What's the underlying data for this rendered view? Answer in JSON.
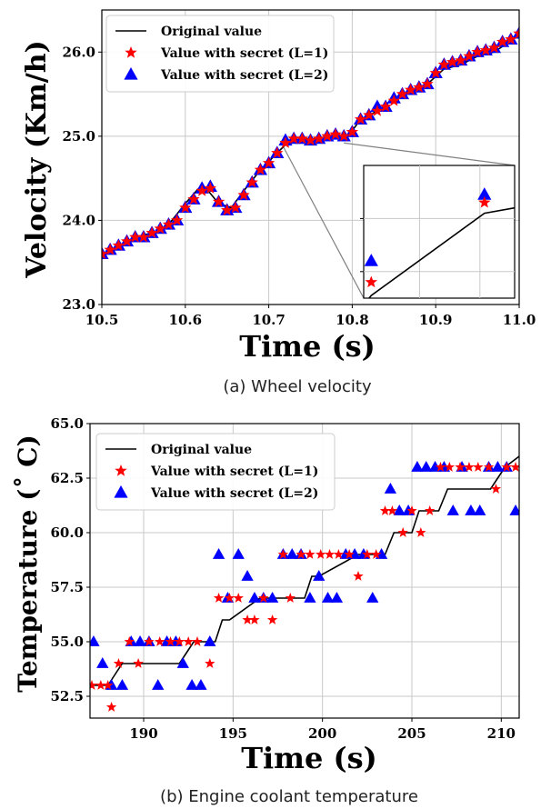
{
  "chart_data": [
    {
      "type": "line",
      "caption": "(a) Wheel velocity",
      "xlabel": "Time (s)",
      "ylabel": "Velocity (Km/h)",
      "xlim": [
        10.5,
        11.0
      ],
      "ylim": [
        23.0,
        26.5
      ],
      "xticks": [
        "10.5",
        "10.6",
        "10.7",
        "10.8",
        "10.9",
        "11.0"
      ],
      "yticks": [
        "23.0",
        "24.0",
        "25.0",
        "26.0"
      ],
      "grid": true,
      "legend_position": "top-left",
      "colors": {
        "original": "#000000",
        "l1": "#ff0000",
        "l2": "#0000ff"
      },
      "series": [
        {
          "name": "Original value",
          "marker": "line",
          "x": [
            10.5,
            10.52,
            10.54,
            10.56,
            10.58,
            10.6,
            10.615,
            10.625,
            10.64,
            10.655,
            10.67,
            10.69,
            10.705,
            10.72,
            10.74,
            10.76,
            10.78,
            10.795,
            10.81,
            10.83,
            10.85,
            10.87,
            10.89,
            10.91,
            10.93,
            10.95,
            10.97,
            10.985,
            11.0
          ],
          "y": [
            23.6,
            23.7,
            23.8,
            23.85,
            23.95,
            24.2,
            24.37,
            24.38,
            24.2,
            24.15,
            24.35,
            24.6,
            24.75,
            24.9,
            24.97,
            24.97,
            25.0,
            25.0,
            25.2,
            25.3,
            25.45,
            25.55,
            25.62,
            25.8,
            25.85,
            25.95,
            26.0,
            26.1,
            26.2
          ]
        },
        {
          "name": "Value with secret (L=1)",
          "marker": "star",
          "x": [
            10.5,
            10.51,
            10.52,
            10.53,
            10.54,
            10.55,
            10.56,
            10.57,
            10.58,
            10.59,
            10.6,
            10.61,
            10.62,
            10.63,
            10.64,
            10.65,
            10.66,
            10.67,
            10.68,
            10.69,
            10.7,
            10.71,
            10.72,
            10.73,
            10.74,
            10.75,
            10.76,
            10.77,
            10.78,
            10.79,
            10.8,
            10.81,
            10.82,
            10.83,
            10.84,
            10.85,
            10.86,
            10.87,
            10.88,
            10.89,
            10.9,
            10.91,
            10.92,
            10.93,
            10.94,
            10.95,
            10.96,
            10.97,
            10.98,
            10.99,
            11.0
          ],
          "y": [
            23.6,
            23.65,
            23.7,
            23.75,
            23.8,
            23.8,
            23.85,
            23.9,
            23.95,
            24.0,
            24.15,
            24.25,
            24.35,
            24.38,
            24.22,
            24.12,
            24.15,
            24.3,
            24.45,
            24.6,
            24.68,
            24.8,
            24.92,
            24.97,
            24.97,
            24.95,
            24.97,
            25.0,
            25.02,
            25.0,
            25.05,
            25.2,
            25.25,
            25.3,
            25.35,
            25.42,
            25.5,
            25.55,
            25.58,
            25.62,
            25.75,
            25.85,
            25.88,
            25.9,
            25.95,
            26.0,
            26.02,
            26.05,
            26.12,
            26.15,
            26.22
          ]
        },
        {
          "name": "Value with secret (L=2)",
          "marker": "triangle",
          "x": [
            10.5,
            10.51,
            10.52,
            10.53,
            10.54,
            10.55,
            10.56,
            10.57,
            10.58,
            10.59,
            10.6,
            10.61,
            10.62,
            10.63,
            10.64,
            10.65,
            10.66,
            10.67,
            10.68,
            10.69,
            10.7,
            10.71,
            10.72,
            10.73,
            10.74,
            10.75,
            10.76,
            10.77,
            10.78,
            10.79,
            10.8,
            10.81,
            10.82,
            10.83,
            10.84,
            10.85,
            10.86,
            10.87,
            10.88,
            10.89,
            10.9,
            10.91,
            10.92,
            10.93,
            10.94,
            10.95,
            10.96,
            10.97,
            10.98,
            10.99,
            11.0
          ],
          "y": [
            23.6,
            23.65,
            23.7,
            23.75,
            23.8,
            23.8,
            23.85,
            23.9,
            23.95,
            24.0,
            24.15,
            24.25,
            24.38,
            24.4,
            24.22,
            24.12,
            24.15,
            24.3,
            24.45,
            24.6,
            24.68,
            24.8,
            24.95,
            24.97,
            24.97,
            24.95,
            24.97,
            25.0,
            25.02,
            25.0,
            25.05,
            25.2,
            25.25,
            25.35,
            25.35,
            25.45,
            25.5,
            25.55,
            25.58,
            25.62,
            25.75,
            25.85,
            25.88,
            25.9,
            25.95,
            26.0,
            26.02,
            26.05,
            26.12,
            26.15,
            26.22
          ]
        }
      ],
      "inset": {
        "xlim": [
          0,
          1
        ],
        "ylim": [
          0,
          1
        ],
        "original": {
          "x": [
            0,
            0.05,
            0.8,
            1.0
          ],
          "y": [
            -0.05,
            0.02,
            0.64,
            0.68
          ]
        },
        "l1": {
          "x": [
            0.05,
            0.8
          ],
          "y": [
            0.12,
            0.72
          ]
        },
        "l2": {
          "x": [
            0.05,
            0.8
          ],
          "y": [
            0.28,
            0.78
          ]
        }
      }
    },
    {
      "type": "line",
      "caption": "(b) Engine coolant temperature",
      "xlabel": "Time (s)",
      "ylabel": "Temperature ($^\\circ$C)",
      "ylabel_display": "Temperature (˚ C)",
      "xlim": [
        187,
        211
      ],
      "ylim": [
        51.5,
        65.0
      ],
      "xticks": [
        "190",
        "195",
        "200",
        "205",
        "210"
      ],
      "yticks": [
        "52.5",
        "55.0",
        "57.5",
        "60.0",
        "62.5",
        "65.0"
      ],
      "grid": true,
      "legend_position": "top-left",
      "colors": {
        "original": "#000000",
        "l1": "#ff0000",
        "l2": "#0000ff"
      },
      "series": [
        {
          "name": "Original value",
          "marker": "step",
          "x": [
            187,
            188,
            188.4,
            188.8,
            192,
            192.4,
            192.8,
            194,
            194.4,
            194.8,
            196.5,
            197,
            199,
            199.4,
            199.8,
            202,
            202.4,
            202.8,
            203.5,
            204,
            204.4,
            205,
            205.4,
            205.8,
            206.5,
            207,
            209.4,
            209.8,
            210.2,
            211
          ],
          "y": [
            53,
            53,
            53.5,
            54,
            54,
            54.5,
            55,
            55,
            56,
            56,
            57,
            57,
            57,
            58,
            58,
            59,
            59,
            59,
            59,
            60,
            60,
            60,
            61,
            61,
            61,
            62,
            62,
            62.5,
            63,
            63.5
          ]
        },
        {
          "name": "Value with secret (L=1)",
          "marker": "star",
          "x": [
            187.1,
            187.6,
            188.0,
            188.6,
            188.2,
            189.2,
            189.7,
            190.3,
            190.9,
            191.5,
            192.0,
            192.5,
            193.0,
            193.7,
            194.2,
            194.8,
            195.3,
            195.8,
            196.2,
            196.7,
            197.2,
            197.8,
            198.2,
            198.8,
            199.3,
            199.9,
            200.4,
            200.9,
            201.5,
            202.0,
            202.5,
            203.0,
            203.5,
            203.9,
            204.5,
            205.0,
            205.5,
            206.0,
            206.6,
            207.1,
            207.7,
            208.2,
            208.7,
            209.3,
            209.7,
            210.3,
            210.8
          ],
          "y": [
            53,
            53,
            53,
            54,
            52,
            55,
            54,
            55,
            55,
            55,
            55,
            55,
            55,
            54,
            57,
            57,
            57,
            56,
            56,
            57,
            56,
            59,
            57,
            59,
            59,
            59,
            59,
            59,
            59,
            58,
            59,
            59,
            61,
            61,
            60,
            61,
            60,
            61,
            63,
            63,
            63,
            63,
            63,
            63,
            62,
            63,
            63
          ]
        },
        {
          "name": "Value with secret (L=2)",
          "marker": "triangle",
          "x": [
            187.2,
            187.7,
            188.2,
            188.8,
            189.3,
            189.8,
            190.3,
            190.8,
            191.3,
            191.8,
            192.2,
            192.7,
            193.2,
            193.7,
            194.2,
            194.7,
            195.3,
            195.8,
            196.2,
            196.7,
            197.2,
            197.8,
            198.3,
            198.8,
            199.3,
            199.8,
            200.3,
            200.8,
            201.3,
            201.8,
            202.3,
            202.8,
            203.3,
            203.8,
            204.3,
            204.8,
            205.3,
            205.8,
            206.3,
            206.8,
            207.3,
            207.8,
            208.3,
            208.8,
            209.3,
            209.8,
            210.3,
            210.8
          ],
          "y": [
            55,
            54,
            53,
            53,
            55,
            55,
            55,
            53,
            55,
            55,
            54,
            53,
            53,
            55,
            59,
            57,
            59,
            58,
            57,
            57,
            57,
            59,
            59,
            59,
            57,
            58,
            57,
            57,
            59,
            59,
            59,
            57,
            59,
            62,
            61,
            61,
            63,
            63,
            63,
            63,
            61,
            63,
            61,
            61,
            63,
            63,
            63,
            61
          ]
        }
      ]
    }
  ]
}
